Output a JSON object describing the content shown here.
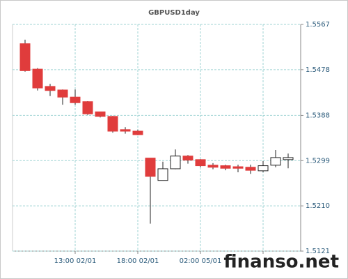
{
  "chart_data": {
    "type": "candlestick",
    "title": "GBPUSD1day",
    "categories": [
      null,
      null,
      null,
      null,
      "13:00 02/01",
      null,
      null,
      null,
      null,
      "18:00 02/01",
      null,
      null,
      null,
      null,
      "02:00 05/01",
      null,
      null,
      null,
      null,
      null,
      null,
      null
    ],
    "series": [
      {
        "open": [
          1.5529,
          1.5479,
          1.5445,
          1.5438,
          1.5424,
          1.5415,
          1.5395,
          1.5386,
          1.536,
          1.5357,
          1.5304,
          1.526,
          1.5283,
          1.5308,
          1.5301,
          1.529,
          1.5289,
          1.5287,
          1.5286,
          1.5279,
          1.529,
          1.5301
        ],
        "high": [
          1.5537,
          1.5481,
          1.545,
          1.5439,
          1.5439,
          1.5416,
          1.5395,
          1.5387,
          1.5365,
          1.536,
          1.5304,
          1.5297,
          1.5321,
          1.531,
          1.5302,
          1.5294,
          1.5291,
          1.5291,
          1.5291,
          1.5298,
          1.532,
          1.5313
        ],
        "low": [
          1.5474,
          1.5437,
          1.5426,
          1.5409,
          1.5409,
          1.5389,
          1.5384,
          1.5354,
          1.5352,
          1.5349,
          1.5175,
          1.526,
          1.5282,
          1.5293,
          1.5286,
          1.5282,
          1.528,
          1.5276,
          1.5273,
          1.5276,
          1.5286,
          1.5284
        ],
        "close": [
          1.5476,
          1.5442,
          1.5437,
          1.5424,
          1.5413,
          1.5391,
          1.5386,
          1.5357,
          1.5357,
          1.535,
          1.5268,
          1.5283,
          1.5308,
          1.53,
          1.5289,
          1.5286,
          1.5284,
          1.5284,
          1.528,
          1.5289,
          1.5305,
          1.5305
        ]
      }
    ],
    "up_color": "#ffffff",
    "down_color": "#e03c3c",
    "ylim": [
      1.5121,
      1.5567
    ],
    "yticks": [
      {
        "value": 1.5121,
        "label": "1.5121"
      },
      {
        "value": 1.521,
        "label": "1.5210"
      },
      {
        "value": 1.5299,
        "label": "1.5299"
      },
      1.5388,
      1.5478,
      1.5567
    ],
    "grid": true,
    "watermark": "finanso.net"
  }
}
